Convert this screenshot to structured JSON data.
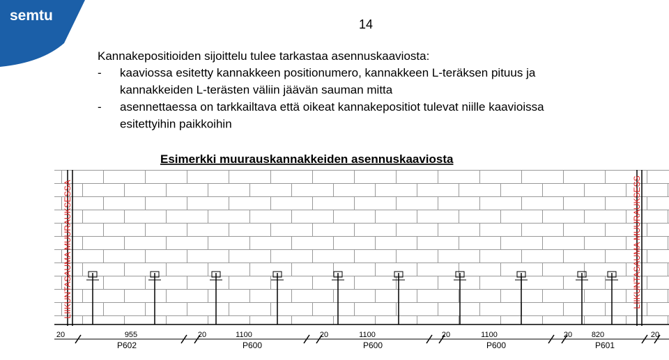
{
  "header": {
    "logo": "semtu",
    "page_number": "14"
  },
  "body": {
    "intro": "Kannakepositioiden sijoittelu tulee tarkastaa asennuskaaviosta:",
    "bullets": [
      {
        "marker": "-",
        "lines": [
          "kaaviossa esitetty kannakkeen positionumero, kannakkeen L-teräksen pituus ja",
          "kannakkeiden L-terästen väliin jäävän sauman mitta"
        ]
      },
      {
        "marker": "-",
        "lines": [
          "asennettaessa on tarkkailtava että oikeat kannakepositiot tulevat niille kaavioissa",
          "esitettyihin paikkoihin"
        ]
      }
    ]
  },
  "figure": {
    "title": "Esimerkki muurauskannakkeiden asennuskaaviosta",
    "joint_labels": [
      "LIIKUNTASAUMA MUURAUKSESSA",
      "LIIKUNTASAUMA MUURAUKSESS"
    ],
    "dimensions": [
      "20",
      "955",
      "20",
      "1100",
      "20",
      "1100",
      "20",
      "1100",
      "20",
      "820",
      "20"
    ],
    "positions": [
      "P602",
      "P600",
      "P600",
      "P600",
      "P601"
    ]
  }
}
